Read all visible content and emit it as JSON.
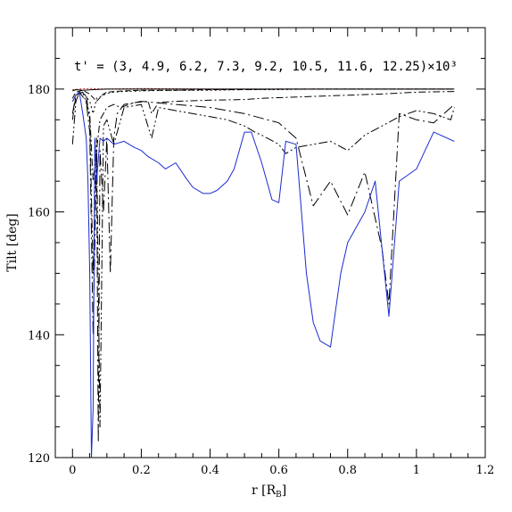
{
  "chart_data": {
    "type": "line",
    "xlabel": "r [R",
    "xlabel_sub": "B",
    "xlabel_close": "]",
    "ylabel": "Tilt [deg]",
    "annotation": "t' = (3, 4.9, 6.2, 7.3, 9.2, 10.5, 11.6, 12.25)×10³",
    "xlim": [
      -0.05,
      1.2
    ],
    "ylim": [
      120,
      190
    ],
    "xticks": [
      0,
      0.2,
      0.4,
      0.6,
      0.8,
      1,
      1.2
    ],
    "xtick_labels": [
      "0",
      "0.2",
      "0.4",
      "0.6",
      "0.8",
      "1",
      "1.2"
    ],
    "yticks": [
      120,
      140,
      160,
      180
    ],
    "ytick_labels": [
      "120",
      "140",
      "160",
      "180"
    ],
    "series": [
      {
        "color": "#d02020",
        "dash": "2,2",
        "x": [
          0.0,
          0.02,
          0.05,
          0.1,
          0.2,
          0.4,
          0.6,
          0.8,
          1.0,
          1.11
        ],
        "y": [
          179.9,
          180.0,
          180.1,
          180.0,
          180.1,
          180.0,
          180.0,
          180.0,
          180.0,
          180.0
        ]
      },
      {
        "color": "#000000",
        "dash": "",
        "x": [
          0.0,
          0.01,
          0.03,
          0.06,
          0.1,
          0.2,
          0.4,
          0.6,
          0.8,
          1.0,
          1.11
        ],
        "y": [
          179.7,
          179.9,
          179.8,
          179.9,
          180.0,
          180.0,
          180.0,
          180.0,
          180.0,
          180.0,
          180.0
        ]
      },
      {
        "color": "#000000",
        "dash": "6,3",
        "x": [
          0.0,
          0.01,
          0.03,
          0.05,
          0.07,
          0.09,
          0.1,
          0.12,
          0.15,
          0.2,
          0.3,
          0.4,
          0.5,
          0.6,
          0.7,
          0.8,
          0.9,
          1.0,
          1.11
        ],
        "y": [
          178.5,
          179.5,
          179.8,
          179.2,
          178.0,
          179.2,
          179.5,
          179.6,
          179.7,
          179.8,
          179.8,
          179.9,
          179.9,
          180.0,
          180.0,
          180.0,
          180.0,
          180.0,
          180.0
        ]
      },
      {
        "color": "#000000",
        "dash": "2,3",
        "x": [
          0.0,
          0.01,
          0.03,
          0.05,
          0.06,
          0.07,
          0.09,
          0.1,
          0.12,
          0.15,
          0.2,
          0.3,
          0.4,
          0.5,
          0.6,
          0.7,
          0.8,
          0.9,
          1.0,
          1.11
        ],
        "y": [
          178.0,
          179.0,
          179.5,
          178.0,
          176.0,
          178.5,
          179.0,
          179.3,
          179.5,
          179.6,
          179.7,
          179.8,
          179.8,
          179.9,
          179.9,
          180.0,
          180.0,
          180.0,
          180.0,
          180.0
        ]
      },
      {
        "color": "#000000",
        "dash": "8,3,2,3",
        "x": [
          0.0,
          0.01,
          0.03,
          0.05,
          0.06,
          0.08,
          0.1,
          0.12,
          0.14,
          0.18,
          0.22,
          0.23,
          0.25,
          0.3,
          0.4,
          0.5,
          0.55,
          0.6,
          0.7,
          0.8,
          0.9,
          1.0,
          1.11
        ],
        "y": [
          175.0,
          179.0,
          179.5,
          176.0,
          165.0,
          175.0,
          177.0,
          177.5,
          177.0,
          177.8,
          178.0,
          176.0,
          177.8,
          178.0,
          178.2,
          178.3,
          178.5,
          178.6,
          178.8,
          179.0,
          179.2,
          179.5,
          179.6
        ]
      },
      {
        "color": "#000000",
        "dash": "10,3,2,3,2,3",
        "x": [
          0.0,
          0.01,
          0.02,
          0.04,
          0.05,
          0.06,
          0.07,
          0.08,
          0.09,
          0.1,
          0.12,
          0.15,
          0.2,
          0.23,
          0.25,
          0.3,
          0.35,
          0.4,
          0.45,
          0.5,
          0.53,
          0.55,
          0.6,
          0.62,
          0.65,
          0.7,
          0.75,
          0.8,
          0.85,
          0.9,
          0.95,
          1.0,
          1.05,
          1.1,
          1.11
        ],
        "y": [
          171.0,
          178.0,
          179.5,
          179.0,
          175.0,
          150.0,
          172.0,
          125.0,
          174.0,
          175.0,
          171.0,
          177.0,
          177.5,
          172.0,
          177.0,
          176.5,
          176.0,
          175.5,
          175.0,
          174.0,
          173.0,
          172.5,
          171.0,
          169.5,
          170.5,
          171.0,
          171.5,
          170.0,
          172.5,
          174.0,
          175.5,
          176.5,
          176.0,
          175.0,
          177.0
        ]
      },
      {
        "color": "#000000",
        "dash": "12,4,2,4",
        "x": [
          0.0,
          0.01,
          0.02,
          0.04,
          0.05,
          0.06,
          0.07,
          0.075,
          0.08,
          0.09,
          0.1,
          0.11,
          0.12,
          0.13,
          0.15,
          0.2,
          0.3,
          0.4,
          0.5,
          0.6,
          0.65,
          0.7,
          0.75,
          0.8,
          0.85,
          0.9,
          0.92,
          0.95,
          1.0,
          1.05,
          1.11
        ],
        "y": [
          176.0,
          179.0,
          179.5,
          178.0,
          173.0,
          140.0,
          170.0,
          122.5,
          170.0,
          160.0,
          172.0,
          150.0,
          172.0,
          176.0,
          177.5,
          178.0,
          177.5,
          177.0,
          176.0,
          174.5,
          172.0,
          161.0,
          165.0,
          159.5,
          166.5,
          154.0,
          145.0,
          176.0,
          175.0,
          174.5,
          177.5
        ]
      },
      {
        "color": "#1a2bd0",
        "dash": "",
        "x": [
          0.0,
          0.01,
          0.02,
          0.03,
          0.04,
          0.045,
          0.05,
          0.055,
          0.06,
          0.065,
          0.07,
          0.08,
          0.09,
          0.1,
          0.12,
          0.15,
          0.18,
          0.2,
          0.22,
          0.25,
          0.27,
          0.3,
          0.33,
          0.35,
          0.38,
          0.4,
          0.42,
          0.45,
          0.47,
          0.5,
          0.52,
          0.55,
          0.58,
          0.6,
          0.62,
          0.65,
          0.68,
          0.7,
          0.72,
          0.75,
          0.78,
          0.8,
          0.85,
          0.88,
          0.92,
          0.95,
          1.0,
          1.05,
          1.11
        ],
        "y": [
          178.0,
          179.0,
          179.5,
          176.0,
          172.0,
          165.0,
          150.0,
          120.0,
          128.0,
          172.0,
          165.0,
          172.0,
          171.5,
          172.0,
          171.0,
          171.5,
          170.5,
          170.0,
          169.0,
          168.0,
          167.0,
          168.0,
          165.5,
          164.0,
          163.0,
          163.0,
          163.5,
          165.0,
          167.0,
          173.0,
          173.0,
          168.0,
          162.0,
          161.5,
          171.5,
          171.0,
          150.0,
          142.0,
          139.0,
          138.0,
          150.0,
          155.0,
          160.0,
          165.0,
          143.0,
          165.0,
          167.0,
          173.0,
          171.5
        ]
      }
    ]
  }
}
